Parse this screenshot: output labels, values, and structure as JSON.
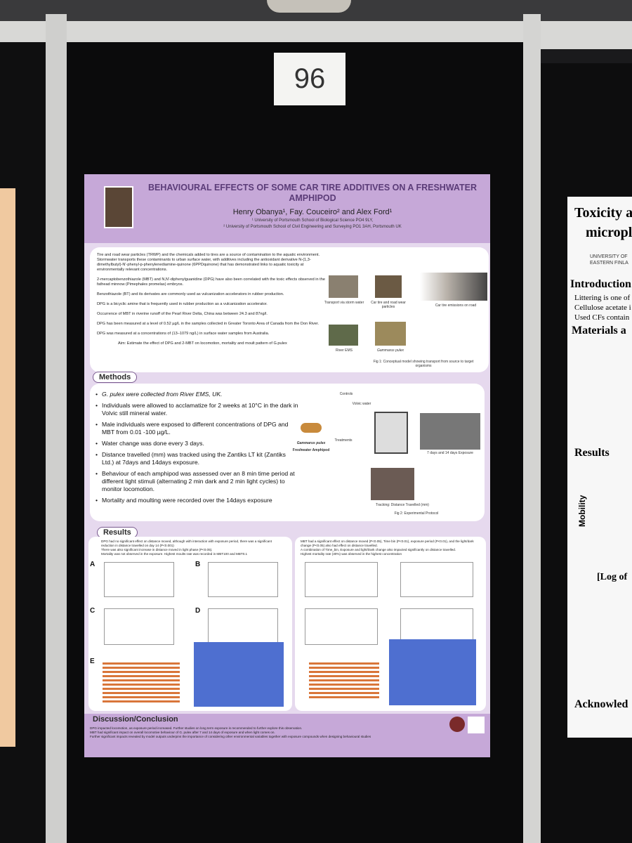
{
  "placard": "96",
  "poster": {
    "title": "BEHAVIOURAL EFFECTS OF SOME CAR TIRE ADDITIVES ON A FRESHWATER AMPHIPOD",
    "authors": "Henry Obanya¹, Fay. Couceiro² and Alex Ford¹",
    "affiliations": [
      "¹ University of Portsmouth School of Biological Science PO4 9LY,",
      "² University of Portsmouth School of Civil Engineering and Surveying PO1 3AH, Portsmouth UK"
    ],
    "intro": [
      "Tire and road wear particles (TRWP) and the chemicals added to tires are a source of contamination to the aquatic environment. Stormwater transports these contaminants to urban surface water, with additives including the antioxidant derivative N-(1,3-dimethylbutyl)-N'-phenyl-p-phenylenediamine-quinone (6PPDquinone) that has demonstrated links to aquatic toxicity at environmentally relevant concentrations.",
      "2-mercaptobenzothiazole (MBT) and N,N'-diphenylguanidine (DPG) have also been correlated with the toxic effects observed in the fathead minnow (Pimephales promelas) embryos.",
      "Benzothiazole (BT) and its derivates are commonly used as vulcanization accelerators in rubber production.",
      "DPG is a bicyclic amine that is frequently used in rubber production as a vulcanization accelerator.",
      "Occurrence of MBT in riverine runoff of the Pearl River Delta, China was between 24.3 and 87ng/l.",
      "DPG has been measured at a level of 0.52 µg/L in the samples collected in Greater Toronto Area of Canada from the Don River.",
      "DPG was measured at a concentrations of (13–1079 ng/L) in surface water samples from Australia.",
      "Aim: Estimate the effect of DPG and 2-MBT on locomotion, mortality and moult pattern of G.pulex"
    ],
    "figure1": {
      "labels": [
        "Transport via storm water",
        "Car tire and road wear particles",
        "Car tire emissions on road",
        "River EMS",
        "Gammarus pulex"
      ],
      "caption": "Fig 1: Conceptual model showing transport from source to target organisms"
    },
    "methods": {
      "heading": "Methods",
      "bullets": [
        "G. pulex were collected from River EMS, UK.",
        "Individuals were allowed to acclamatize for 2 weeks at 10°C in the dark in Volvic still mineral water.",
        "Male individuals were exposed to different concentrations of DPG and MBT from 0.01 -100 µg/L.",
        "Water change was done every 3 days.",
        "Distance travelled (mm) was tracked using the Zantiks LT kit (Zantiks Ltd.) at 7days and 14days exposure.",
        "Behaviour of each amphipod was assessed over an 8 min time period at different light stimuli (alternating 2 min dark and 2 min light cycles) to monitor locomotion.",
        "Mortality and moulting were recorded over the 14days exposure"
      ]
    },
    "figure2": {
      "labels": [
        "Controls",
        "Volvic water",
        "Treatments",
        "Gammarus pulex",
        "Freshwater Amphipod",
        "7 days and 14 days Exposure",
        "Tracking: Distance Travelled (mm)"
      ],
      "caption": "Fig 2: Experimental Protocol"
    },
    "results": {
      "heading": "Results",
      "left_bullets": [
        "DPG had no significant effect on distance moved, although with interaction with exposure period, there was a significant reduction in distance travelled on day 14 (P<0.001)",
        "There was also significant increase in distance moved in light phase (P<0.05).",
        "Mortality was not observed in the exposure. Highest moults rate was recorded in MBT100 and MBT0.1"
      ],
      "right_bullets": [
        "MBT had a significant effect on distance moved (P<0.05), Time bin (P<0.01), exposure period (P<0.01), and the light/dark change (P<0.05) also had effect on distance travelled.",
        "A combination of Time_bin, Exposure and light/Dark change also impacted significantly on distance travelled.",
        "Highest mortality rate (30%) was observed in the highest concentration"
      ],
      "panel_letters": [
        "A",
        "B",
        "C",
        "D",
        "E"
      ]
    },
    "discussion": {
      "heading": "Discussion/Conclusion",
      "bullets": [
        "DPG impacted locomotion, as exposure period increased. Further studies on long term exposure is recommended to further explore this observation.",
        "MBT had significant impact on overall locomotive behaviour of G. pulex after 7 and 14 days of exposure and when light comes on.",
        "Further significant impacts revealed by model outputs underpins the importance of considering other environmental variables together with exposure compounds when designing behavioural studies"
      ]
    }
  },
  "neighbor_poster": {
    "title_lines": [
      "Toxicity a",
      "micropl"
    ],
    "university": [
      "UNIVERSITY OF",
      "EASTERN FINLA"
    ],
    "headings": [
      "Introduction",
      "Materials a",
      "Results",
      "Acknowled"
    ],
    "bullets": [
      "Littering is one of",
      "Cellulose acetate i",
      "Used CFs contain"
    ],
    "y_label": "Mobility",
    "x_label": "[Log of"
  }
}
